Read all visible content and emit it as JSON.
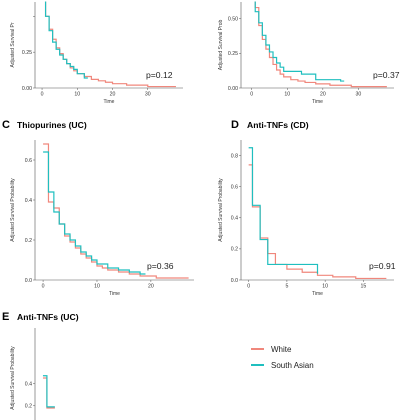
{
  "colors": {
    "white": "#f0877c",
    "south_asian": "#1fbfbf"
  },
  "legend": [
    {
      "name": "White",
      "color_key": "white"
    },
    {
      "name": "South Asian",
      "color_key": "south_asian"
    }
  ],
  "chart_data": [
    {
      "id": "A",
      "type": "line",
      "letter": "",
      "title": "",
      "xlabel": "Time",
      "ylabel": "Adjusted Survival Pr",
      "xlim": [
        -2,
        40
      ],
      "ylim": [
        0,
        0.6
      ],
      "xticks": [
        0,
        10,
        20,
        30
      ],
      "yticks": [
        0.0,
        0.25,
        0.5
      ],
      "ytick_labels": [
        "0.00",
        "0.25",
        ""
      ],
      "pvalue": "p=0.12",
      "series": [
        {
          "name": "White",
          "color_key": "white",
          "points": [
            [
              0,
              0.68
            ],
            [
              1,
              0.68
            ],
            [
              1,
              0.5
            ],
            [
              2,
              0.5
            ],
            [
              2,
              0.41
            ],
            [
              3,
              0.41
            ],
            [
              3,
              0.34
            ],
            [
              4,
              0.34
            ],
            [
              4,
              0.28
            ],
            [
              5,
              0.28
            ],
            [
              5,
              0.24
            ],
            [
              6,
              0.24
            ],
            [
              6,
              0.2
            ],
            [
              7,
              0.2
            ],
            [
              7,
              0.17
            ],
            [
              8,
              0.17
            ],
            [
              8,
              0.14
            ],
            [
              9,
              0.14
            ],
            [
              9,
              0.12
            ],
            [
              10,
              0.12
            ],
            [
              10,
              0.1
            ],
            [
              12,
              0.1
            ],
            [
              12,
              0.08
            ],
            [
              14,
              0.08
            ],
            [
              14,
              0.06
            ],
            [
              16,
              0.06
            ],
            [
              16,
              0.05
            ],
            [
              18,
              0.05
            ],
            [
              18,
              0.04
            ],
            [
              20,
              0.04
            ],
            [
              20,
              0.03
            ],
            [
              24,
              0.03
            ],
            [
              24,
              0.02
            ],
            [
              30,
              0.02
            ],
            [
              30,
              0.01
            ],
            [
              38,
              0.01
            ]
          ]
        },
        {
          "name": "South Asian",
          "color_key": "south_asian",
          "points": [
            [
              0,
              0.68
            ],
            [
              1,
              0.68
            ],
            [
              1,
              0.5
            ],
            [
              2,
              0.5
            ],
            [
              2,
              0.4
            ],
            [
              3,
              0.4
            ],
            [
              3,
              0.32
            ],
            [
              4,
              0.32
            ],
            [
              4,
              0.27
            ],
            [
              5,
              0.27
            ],
            [
              5,
              0.23
            ],
            [
              6,
              0.23
            ],
            [
              6,
              0.2
            ],
            [
              7,
              0.2
            ],
            [
              7,
              0.17
            ],
            [
              8,
              0.17
            ],
            [
              8,
              0.15
            ],
            [
              9,
              0.15
            ],
            [
              9,
              0.13
            ],
            [
              10,
              0.13
            ],
            [
              10,
              0.1
            ],
            [
              12,
              0.1
            ],
            [
              12,
              0.07
            ],
            [
              13,
              0.07
            ]
          ]
        }
      ]
    },
    {
      "id": "B",
      "type": "line",
      "letter": "",
      "title": "",
      "xlabel": "Time",
      "ylabel": "Adjusted Survival Prob",
      "xlim": [
        -3,
        40
      ],
      "ylim": [
        0,
        0.62
      ],
      "xticks": [
        0,
        10,
        20,
        30
      ],
      "yticks": [
        0.0,
        0.25,
        0.5
      ],
      "ytick_labels": [
        "0.00",
        "0.25",
        "0.50"
      ],
      "pvalue": "p=0.37",
      "series": [
        {
          "name": "White",
          "color_key": "white",
          "points": [
            [
              0,
              0.7
            ],
            [
              1,
              0.7
            ],
            [
              1,
              0.58
            ],
            [
              2,
              0.58
            ],
            [
              2,
              0.45
            ],
            [
              3,
              0.45
            ],
            [
              3,
              0.35
            ],
            [
              4,
              0.35
            ],
            [
              4,
              0.28
            ],
            [
              5,
              0.28
            ],
            [
              5,
              0.22
            ],
            [
              6,
              0.22
            ],
            [
              6,
              0.17
            ],
            [
              7,
              0.17
            ],
            [
              7,
              0.13
            ],
            [
              8,
              0.13
            ],
            [
              8,
              0.1
            ],
            [
              9,
              0.1
            ],
            [
              9,
              0.08
            ],
            [
              11,
              0.08
            ],
            [
              11,
              0.06
            ],
            [
              13,
              0.06
            ],
            [
              13,
              0.05
            ],
            [
              15,
              0.05
            ],
            [
              15,
              0.04
            ],
            [
              18,
              0.04
            ],
            [
              18,
              0.03
            ],
            [
              22,
              0.03
            ],
            [
              22,
              0.02
            ],
            [
              28,
              0.02
            ],
            [
              28,
              0.01
            ],
            [
              38,
              0.01
            ]
          ]
        },
        {
          "name": "South Asian",
          "color_key": "south_asian",
          "points": [
            [
              0,
              0.7
            ],
            [
              1,
              0.7
            ],
            [
              1,
              0.55
            ],
            [
              2,
              0.55
            ],
            [
              2,
              0.47
            ],
            [
              3,
              0.47
            ],
            [
              3,
              0.38
            ],
            [
              4,
              0.38
            ],
            [
              4,
              0.31
            ],
            [
              5,
              0.31
            ],
            [
              5,
              0.26
            ],
            [
              6,
              0.26
            ],
            [
              6,
              0.22
            ],
            [
              7,
              0.22
            ],
            [
              7,
              0.18
            ],
            [
              8,
              0.18
            ],
            [
              8,
              0.15
            ],
            [
              9,
              0.15
            ],
            [
              9,
              0.12
            ],
            [
              14,
              0.12
            ],
            [
              14,
              0.1
            ],
            [
              18,
              0.1
            ],
            [
              18,
              0.06
            ],
            [
              25,
              0.06
            ],
            [
              25,
              0.05
            ],
            [
              26,
              0.05
            ]
          ]
        }
      ]
    },
    {
      "id": "C",
      "type": "line",
      "letter": "C",
      "title": "Thiopurines (UC)",
      "xlabel": "Time",
      "ylabel": "Adjusted Survival Probability",
      "xlim": [
        -1.5,
        28
      ],
      "ylim": [
        0,
        0.7
      ],
      "xticks": [
        0,
        10,
        20
      ],
      "yticks": [
        0.0,
        0.2,
        0.4,
        0.6
      ],
      "ytick_labels": [
        "0.0",
        "0.2",
        "0.4",
        "0.6"
      ],
      "pvalue": "p=0.36",
      "series": [
        {
          "name": "White",
          "color_key": "white",
          "points": [
            [
              0,
              0.68
            ],
            [
              1,
              0.68
            ],
            [
              1,
              0.39
            ],
            [
              2,
              0.39
            ],
            [
              2,
              0.36
            ],
            [
              3,
              0.36
            ],
            [
              3,
              0.28
            ],
            [
              4,
              0.28
            ],
            [
              4,
              0.22
            ],
            [
              5,
              0.22
            ],
            [
              5,
              0.19
            ],
            [
              6,
              0.19
            ],
            [
              6,
              0.16
            ],
            [
              7,
              0.16
            ],
            [
              7,
              0.13
            ],
            [
              8,
              0.13
            ],
            [
              8,
              0.11
            ],
            [
              9,
              0.11
            ],
            [
              9,
              0.09
            ],
            [
              10,
              0.09
            ],
            [
              10,
              0.07
            ],
            [
              11,
              0.07
            ],
            [
              11,
              0.06
            ],
            [
              12,
              0.06
            ],
            [
              12,
              0.05
            ],
            [
              14,
              0.05
            ],
            [
              14,
              0.04
            ],
            [
              16,
              0.04
            ],
            [
              16,
              0.03
            ],
            [
              18,
              0.03
            ],
            [
              18,
              0.02
            ],
            [
              21,
              0.02
            ],
            [
              21,
              0.01
            ],
            [
              27,
              0.01
            ]
          ]
        },
        {
          "name": "South Asian",
          "color_key": "south_asian",
          "points": [
            [
              0,
              0.64
            ],
            [
              1,
              0.64
            ],
            [
              1,
              0.44
            ],
            [
              2,
              0.44
            ],
            [
              2,
              0.34
            ],
            [
              3,
              0.34
            ],
            [
              3,
              0.28
            ],
            [
              4,
              0.28
            ],
            [
              4,
              0.23
            ],
            [
              5,
              0.23
            ],
            [
              5,
              0.2
            ],
            [
              6,
              0.2
            ],
            [
              6,
              0.17
            ],
            [
              7,
              0.17
            ],
            [
              7,
              0.14
            ],
            [
              8,
              0.14
            ],
            [
              8,
              0.12
            ],
            [
              9,
              0.12
            ],
            [
              9,
              0.1
            ],
            [
              10,
              0.1
            ],
            [
              10,
              0.08
            ],
            [
              12,
              0.08
            ],
            [
              12,
              0.06
            ],
            [
              14,
              0.06
            ],
            [
              14,
              0.05
            ],
            [
              16,
              0.05
            ],
            [
              16,
              0.04
            ],
            [
              18,
              0.04
            ],
            [
              18,
              0.03
            ],
            [
              19,
              0.03
            ]
          ]
        }
      ]
    },
    {
      "id": "D",
      "type": "line",
      "letter": "D",
      "title": "Anti-TNFs (CD)",
      "xlabel": "Time",
      "ylabel": "Adjusted Survival Probability",
      "xlim": [
        -1,
        19
      ],
      "ylim": [
        0,
        0.9
      ],
      "xticks": [
        0,
        5,
        10,
        15
      ],
      "yticks": [
        0.0,
        0.2,
        0.4,
        0.6,
        0.8
      ],
      "ytick_labels": [
        "0.0",
        "0.2",
        "0.4",
        "0.6",
        "0.8"
      ],
      "pvalue": "p=0.91",
      "series": [
        {
          "name": "White",
          "color_key": "white",
          "points": [
            [
              0,
              0.74
            ],
            [
              0.5,
              0.74
            ],
            [
              0.5,
              0.47
            ],
            [
              1.5,
              0.47
            ],
            [
              1.5,
              0.27
            ],
            [
              2.5,
              0.27
            ],
            [
              2.5,
              0.17
            ],
            [
              3.5,
              0.17
            ],
            [
              3.5,
              0.1
            ],
            [
              5,
              0.1
            ],
            [
              5,
              0.07
            ],
            [
              7,
              0.07
            ],
            [
              7,
              0.05
            ],
            [
              9,
              0.05
            ],
            [
              9,
              0.03
            ],
            [
              11,
              0.03
            ],
            [
              11,
              0.02
            ],
            [
              14,
              0.02
            ],
            [
              14,
              0.01
            ],
            [
              18,
              0.01
            ]
          ]
        },
        {
          "name": "South Asian",
          "color_key": "south_asian",
          "points": [
            [
              0,
              0.85
            ],
            [
              0.5,
              0.85
            ],
            [
              0.5,
              0.48
            ],
            [
              1.5,
              0.48
            ],
            [
              1.5,
              0.26
            ],
            [
              2.5,
              0.26
            ],
            [
              2.5,
              0.1
            ],
            [
              9,
              0.1
            ],
            [
              9,
              0.04
            ]
          ]
        }
      ]
    },
    {
      "id": "E",
      "type": "line",
      "letter": "E",
      "title": "Anti-TNFs (UC)",
      "xlabel": "",
      "ylabel": "Adjusted Survival Probability",
      "xlim": [
        -1,
        19
      ],
      "ylim": [
        0,
        0.9
      ],
      "xticks": [],
      "yticks": [
        0.2,
        0.4
      ],
      "ytick_labels": [
        "0.2",
        "0.4"
      ],
      "pvalue": "",
      "series": [
        {
          "name": "White",
          "color_key": "white",
          "points": [
            [
              0,
              0.45
            ],
            [
              0.5,
              0.45
            ],
            [
              0.5,
              0.18
            ],
            [
              1.5,
              0.18
            ]
          ]
        },
        {
          "name": "South Asian",
          "color_key": "south_asian",
          "points": [
            [
              0,
              0.47
            ],
            [
              0.5,
              0.47
            ],
            [
              0.5,
              0.19
            ],
            [
              1.5,
              0.19
            ]
          ]
        }
      ]
    }
  ]
}
